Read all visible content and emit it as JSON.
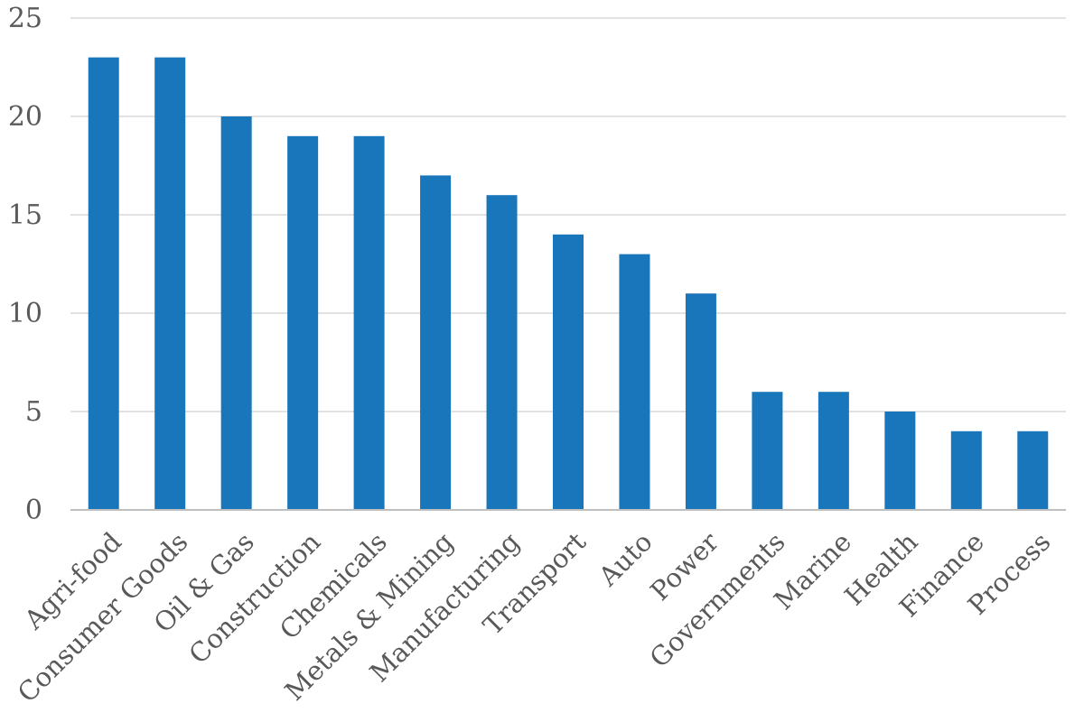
{
  "chart_data": {
    "type": "bar",
    "categories": [
      "Agri-food",
      "Consumer Goods",
      "Oil & Gas",
      "Construction",
      "Chemicals",
      "Metals & Mining",
      "Manufacturing",
      "Transport",
      "Auto",
      "Power",
      "Governments",
      "Marine",
      "Health",
      "Finance",
      "Process"
    ],
    "values": [
      23,
      23,
      20,
      19,
      19,
      17,
      16,
      14,
      13,
      11,
      6,
      6,
      5,
      4,
      4
    ],
    "title": "",
    "xlabel": "",
    "ylabel": "",
    "ylim": [
      0,
      25
    ],
    "yticks": [
      "0",
      "5",
      "10",
      "15",
      "20",
      "25"
    ],
    "grid": true,
    "legend": "none",
    "bar_color": "#1a76bb",
    "grid_color": "#d9d9d9",
    "text_color": "#595959"
  }
}
